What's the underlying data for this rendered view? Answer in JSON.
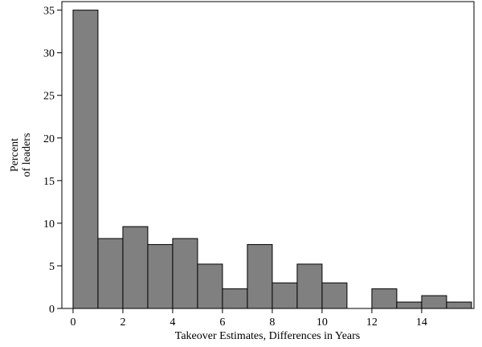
{
  "chart_data": {
    "type": "histogram",
    "xlabel": "Takeover Estimates, Differences in Years",
    "ylabel": [
      "Percent",
      "of leaders"
    ],
    "bins": [
      0,
      1,
      2,
      3,
      4,
      5,
      6,
      7,
      8,
      9,
      10,
      11,
      12,
      13,
      14,
      15,
      16
    ],
    "values": [
      35,
      8.2,
      9.6,
      7.5,
      8.2,
      5.2,
      2.3,
      7.5,
      3.0,
      5.2,
      3.0,
      0,
      2.3,
      0.75,
      1.5,
      0.75
    ],
    "color": "#808080",
    "xlim": [
      -0.45,
      16.1
    ],
    "xticks": [
      0,
      2,
      4,
      6,
      8,
      10,
      12,
      14
    ],
    "ylim": [
      0,
      36
    ],
    "yticks": [
      0,
      5,
      10,
      15,
      20,
      25,
      30,
      35
    ],
    "grid": false
  }
}
